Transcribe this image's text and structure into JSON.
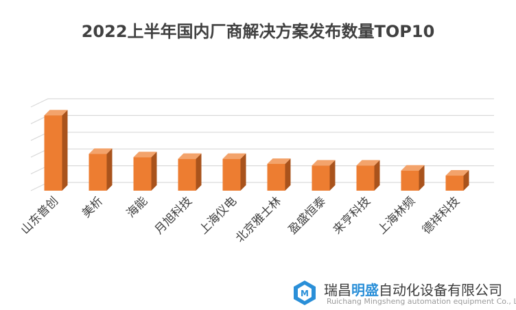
{
  "chart_data": {
    "type": "bar",
    "title": "2022上半年国内厂商解决方案发布数量TOP10",
    "categories": [
      "山东普创",
      "美析",
      "海能",
      "月旭科技",
      "上海仪电",
      "北京雅士林",
      "盈盛恒泰",
      "来亨科技",
      "上海林频",
      "德祥科技"
    ],
    "values": [
      45,
      22,
      20,
      19,
      19,
      16,
      15,
      15,
      12,
      9
    ],
    "ylim": [
      0,
      50
    ],
    "ytick_count": 6,
    "axis_tick_labels_shown": false,
    "grid": true,
    "legend": "none",
    "style": "3d",
    "colors": {
      "bar_front": "#ed7d31",
      "bar_side": "#a9531c",
      "bar_top": "#f3a36b",
      "grid": "#d9d9d9"
    }
  },
  "watermark": {
    "company_part1": "瑞昌",
    "company_highlight": "明盛",
    "company_part2": "自动化设备有限公司",
    "company_en": "Ruichang Mingsheng automation equipment Co., Ltd",
    "logo_icon": "cube-logo-icon",
    "logo_color": "#2a8fd8"
  }
}
